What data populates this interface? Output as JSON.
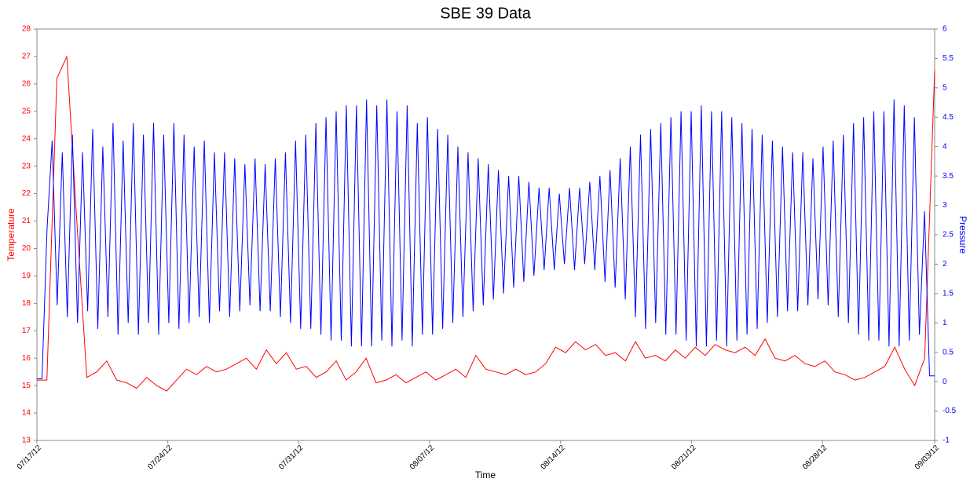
{
  "chart_data": {
    "type": "line",
    "title": "SBE 39 Data",
    "xlabel": "Time",
    "ylabel": "Temperature",
    "y2label": "Pressure",
    "xlim": [
      "07/17/12",
      "09/03/12"
    ],
    "xticks": [
      "07/17/12",
      "07/24/12",
      "07/31/12",
      "08/07/12",
      "08/14/12",
      "08/21/12",
      "08/28/12",
      "09/03/12"
    ],
    "ylim": [
      13,
      28
    ],
    "yticks": [
      13,
      14,
      15,
      16,
      17,
      18,
      19,
      20,
      21,
      22,
      23,
      24,
      25,
      26,
      27,
      28
    ],
    "y2lim": [
      -1,
      6
    ],
    "y2ticks": [
      -1,
      -0.5,
      0,
      0.5,
      1,
      1.5,
      2,
      2.5,
      3,
      3.5,
      4,
      4.5,
      5,
      5.5,
      6
    ],
    "series": [
      {
        "name": "Temperature",
        "color": "#ff0000",
        "values": [
          15.2,
          15.2,
          26.2,
          27.0,
          21.0,
          15.3,
          15.5,
          15.9,
          15.2,
          15.1,
          14.9,
          15.3,
          15.0,
          14.8,
          15.2,
          15.6,
          15.4,
          15.7,
          15.5,
          15.6,
          15.8,
          16.0,
          15.6,
          16.3,
          15.8,
          16.2,
          15.6,
          15.7,
          15.3,
          15.5,
          15.9,
          15.2,
          15.5,
          16.0,
          15.1,
          15.2,
          15.4,
          15.1,
          15.3,
          15.5,
          15.2,
          15.4,
          15.6,
          15.3,
          16.1,
          15.6,
          15.5,
          15.4,
          15.6,
          15.4,
          15.5,
          15.8,
          16.4,
          16.2,
          16.6,
          16.3,
          16.5,
          16.1,
          16.2,
          15.9,
          16.6,
          16.0,
          16.1,
          15.9,
          16.3,
          16.0,
          16.4,
          16.1,
          16.5,
          16.3,
          16.2,
          16.4,
          16.1,
          16.7,
          16.0,
          15.9,
          16.1,
          15.8,
          15.7,
          15.9,
          15.5,
          15.4,
          15.2,
          15.3,
          15.5,
          15.7,
          16.4,
          15.6,
          15.0,
          16.0,
          26.5
        ]
      },
      {
        "name": "Pressure",
        "color": "#0000ff",
        "axis": "y2",
        "values": [
          0.05,
          0.05,
          2.6,
          4.1,
          1.3,
          3.9,
          1.1,
          4.2,
          1.0,
          3.9,
          1.2,
          4.3,
          0.9,
          4.0,
          1.1,
          4.4,
          0.8,
          4.1,
          1.0,
          4.4,
          0.8,
          4.2,
          1.0,
          4.4,
          0.8,
          4.2,
          1.0,
          4.4,
          0.9,
          4.2,
          1.0,
          4.0,
          1.1,
          4.1,
          1.0,
          3.9,
          1.2,
          3.9,
          1.1,
          3.8,
          1.2,
          3.7,
          1.3,
          3.8,
          1.2,
          3.7,
          1.2,
          3.8,
          1.1,
          3.9,
          1.0,
          4.1,
          0.9,
          4.2,
          0.9,
          4.4,
          0.8,
          4.5,
          0.7,
          4.6,
          0.7,
          4.7,
          0.6,
          4.7,
          0.6,
          4.8,
          0.6,
          4.7,
          0.7,
          4.8,
          0.6,
          4.6,
          0.7,
          4.7,
          0.6,
          4.4,
          0.8,
          4.5,
          0.8,
          4.3,
          0.9,
          4.2,
          1.0,
          4.0,
          1.1,
          3.9,
          1.2,
          3.8,
          1.3,
          3.7,
          1.4,
          3.6,
          1.5,
          3.5,
          1.6,
          3.5,
          1.7,
          3.4,
          1.8,
          3.3,
          1.9,
          3.3,
          1.9,
          3.2,
          2.0,
          3.3,
          1.9,
          3.3,
          2.0,
          3.4,
          1.9,
          3.5,
          1.7,
          3.6,
          1.6,
          3.8,
          1.4,
          4.0,
          1.1,
          4.2,
          0.9,
          4.3,
          1.0,
          4.4,
          0.8,
          4.5,
          0.8,
          4.6,
          0.7,
          4.6,
          0.6,
          4.7,
          0.6,
          4.6,
          0.7,
          4.6,
          0.6,
          4.5,
          0.7,
          4.4,
          0.8,
          4.3,
          0.9,
          4.2,
          1.0,
          4.1,
          1.1,
          4.0,
          1.2,
          3.9,
          1.2,
          3.9,
          1.3,
          3.8,
          1.4,
          4.0,
          1.3,
          4.1,
          1.1,
          4.2,
          1.0,
          4.4,
          0.8,
          4.5,
          0.7,
          4.6,
          0.7,
          4.6,
          0.6,
          4.8,
          0.6,
          4.7,
          0.7,
          4.5,
          0.8,
          2.9,
          0.1,
          0.1
        ]
      }
    ]
  }
}
